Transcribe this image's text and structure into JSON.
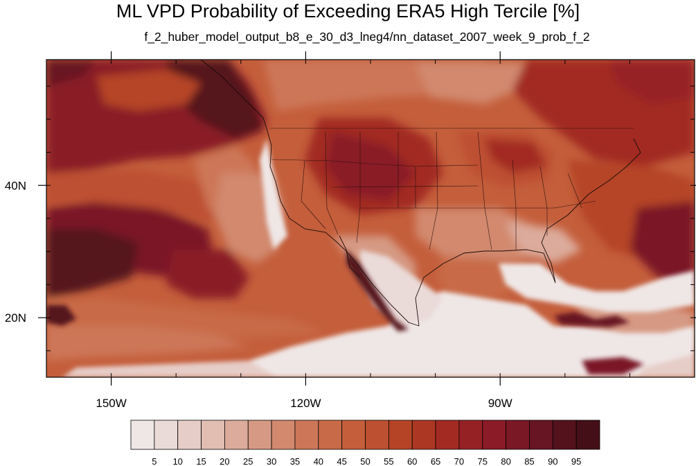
{
  "title": "ML VPD Probability of Exceeding ERA5 High Tercile [%]",
  "subtitle": "f_2_huber_model_output_b8_e_30_d3_lneg4/nn_dataset_2007_week_9_prob_f_2",
  "map": {
    "type": "filled-contour map",
    "region": "North Pacific, North America and western North Atlantic",
    "lon_range": [
      -160,
      -60
    ],
    "lat_range": [
      11,
      59
    ],
    "lon_ticks": [
      {
        "value": -150,
        "label": "150W"
      },
      {
        "value": -120,
        "label": "120W"
      },
      {
        "value": -90,
        "label": "90W"
      }
    ],
    "lat_ticks": [
      {
        "value": 40,
        "label": "40N"
      },
      {
        "value": 20,
        "label": "20N"
      }
    ],
    "overlays": [
      "coastlines",
      "US state boundaries"
    ]
  },
  "colorbar": {
    "labels": [
      "5",
      "10",
      "15",
      "20",
      "25",
      "30",
      "35",
      "40",
      "45",
      "50",
      "55",
      "60",
      "65",
      "70",
      "75",
      "80",
      "85",
      "90",
      "95"
    ],
    "colors": [
      "#efe7e6",
      "#eadad8",
      "#e6cdc8",
      "#e1bdb2",
      "#dcab9b",
      "#d69a84",
      "#d2896e",
      "#cd7758",
      "#c86a47",
      "#c45e3b",
      "#bd5030",
      "#b54427",
      "#ac3722",
      "#a22a22",
      "#962125",
      "#8a1b27",
      "#7a1826",
      "#671522",
      "#54121c",
      "#440f16"
    ]
  }
}
